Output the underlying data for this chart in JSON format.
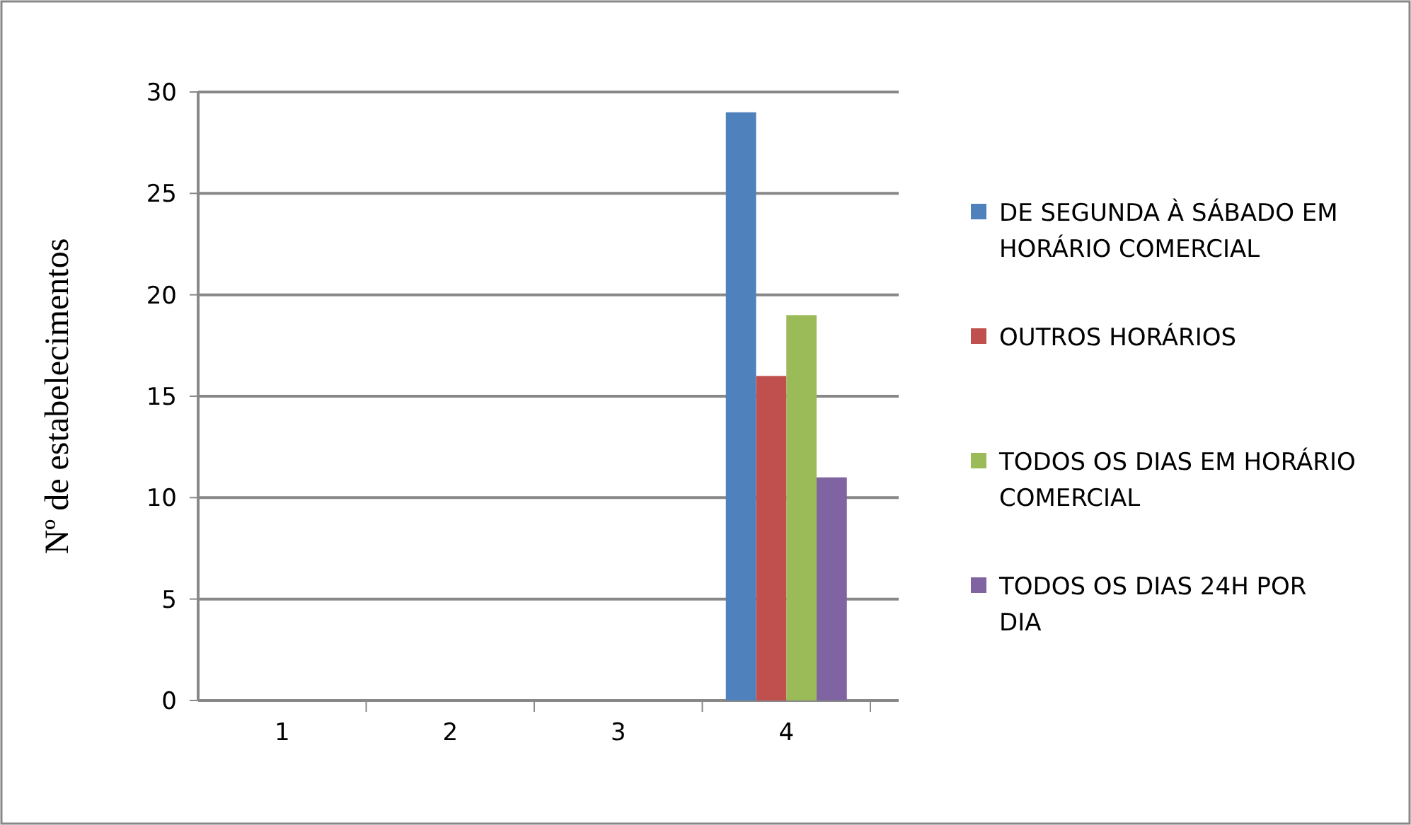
{
  "chart_data": {
    "type": "bar",
    "ylabel": "Nº de estabelecimentos",
    "categories": [
      "1",
      "2",
      "3",
      "4"
    ],
    "series": [
      {
        "name": "DE SEGUNDA À SÁBADO EM HORÁRIO COMERCIAL",
        "color": "#4f81bd",
        "values": [
          null,
          null,
          null,
          29
        ]
      },
      {
        "name": "OUTROS HORÁRIOS",
        "color": "#c0504d",
        "values": [
          null,
          null,
          null,
          16
        ]
      },
      {
        "name": "TODOS OS DIAS EM HORÁRIO COMERCIAL",
        "color": "#9bbb59",
        "values": [
          null,
          null,
          null,
          19
        ]
      },
      {
        "name": "TODOS OS DIAS 24H POR DIA",
        "color": "#8064a2",
        "values": [
          null,
          null,
          null,
          11
        ]
      }
    ],
    "ylim": [
      0,
      30
    ],
    "yticks": [
      0,
      5,
      10,
      15,
      20,
      25,
      30
    ],
    "grid": "y",
    "legend": "right"
  }
}
